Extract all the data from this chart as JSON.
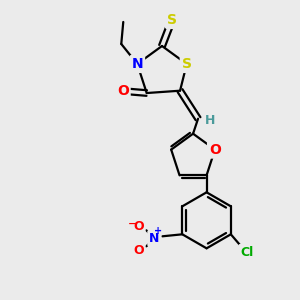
{
  "bg_color": "#ebebeb",
  "atom_colors": {
    "C": "#000000",
    "N": "#0000ff",
    "O": "#ff0000",
    "S": "#cccc00",
    "Cl": "#00aa00",
    "H": "#4a9a9a"
  },
  "bond_color": "#000000",
  "line_width": 1.6,
  "figsize": [
    3.0,
    3.0
  ],
  "dpi": 100
}
